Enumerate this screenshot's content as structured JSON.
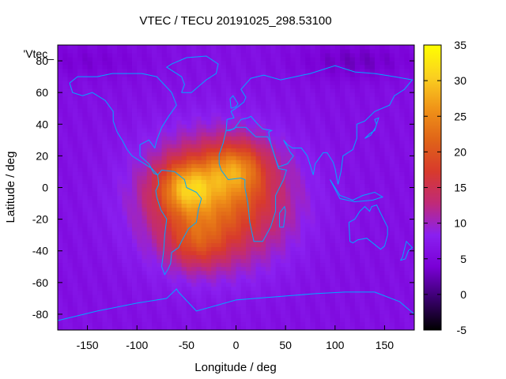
{
  "chart_data": {
    "type": "heatmap",
    "title": "VTEC / TECU 20191025_298.53100",
    "xlabel": "Longitude / deg",
    "ylabel": "Latitude / deg",
    "legend_label": "'Vtec_",
    "xlim": [
      -180,
      180
    ],
    "ylim": [
      -90,
      90
    ],
    "x_ticks": [
      -150,
      -100,
      -50,
      0,
      50,
      100,
      150
    ],
    "y_ticks": [
      -80,
      -60,
      -40,
      -20,
      0,
      20,
      40,
      60,
      80
    ],
    "colorbar": {
      "range": [
        -5,
        35
      ],
      "ticks": [
        -5,
        0,
        5,
        10,
        15,
        20,
        25,
        30,
        35
      ],
      "colormap": [
        "#000000",
        "#3a006e",
        "#7a00d6",
        "#8a20f0",
        "#c02a78",
        "#d83a2c",
        "#e06418",
        "#f09418",
        "#fad020",
        "#ffff00"
      ]
    },
    "field": {
      "background_vtec": 6,
      "peaks": [
        {
          "lon": -50,
          "lat": 0,
          "vtec": 30
        },
        {
          "lon": 0,
          "lat": 12,
          "vtec": 28
        },
        {
          "lon": -40,
          "lat": -35,
          "vtec": 24
        }
      ],
      "low_regions": [
        {
          "lon": 120,
          "lat": 80,
          "vtec": 3
        },
        {
          "lon": -150,
          "lat": 80,
          "vtec": 4
        }
      ]
    },
    "coastline_color": "#00a8ff"
  }
}
